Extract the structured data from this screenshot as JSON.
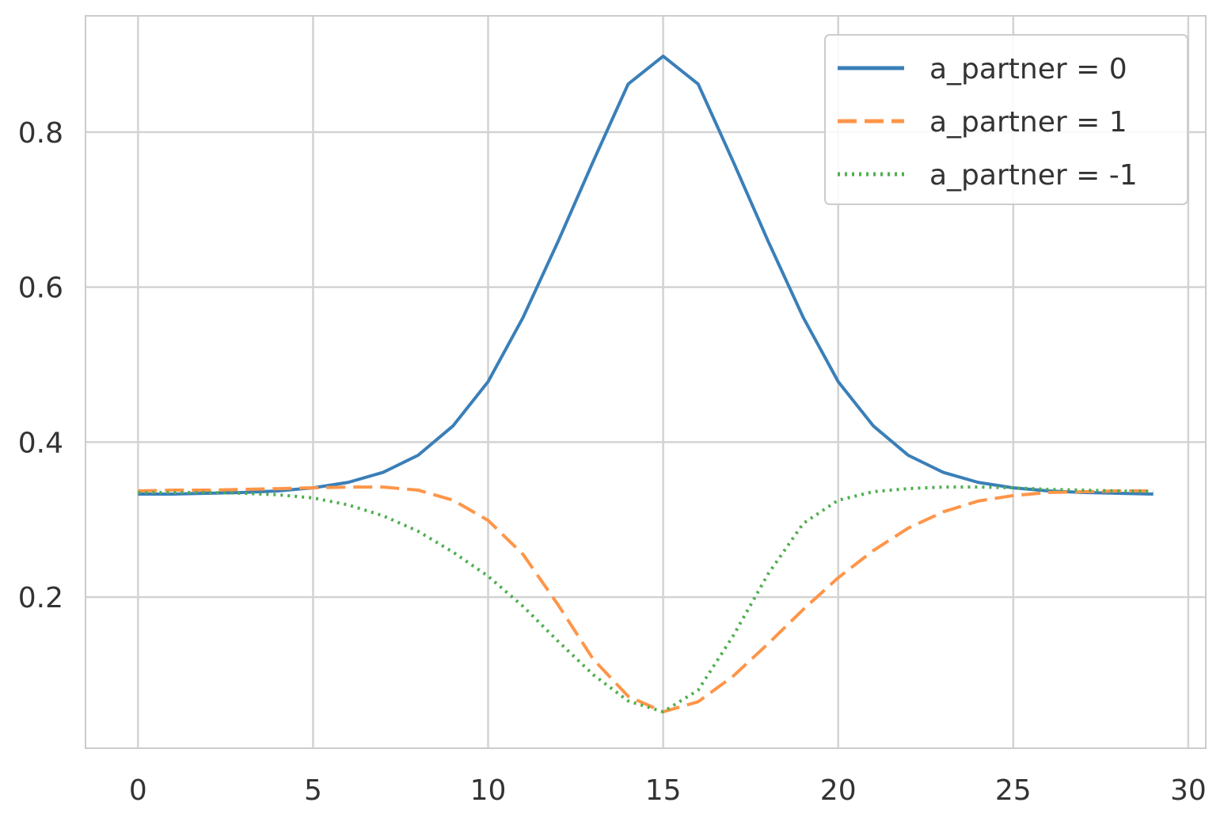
{
  "chart_data": {
    "type": "line",
    "title": "",
    "xlabel": "",
    "ylabel": "",
    "xlim": [
      -1.5,
      30.5
    ],
    "ylim": [
      0.005,
      0.95
    ],
    "grid": true,
    "legend_placement": "top-right",
    "xticks": [
      0,
      5,
      10,
      15,
      20,
      25,
      30
    ],
    "xtick_labels": [
      "0",
      "5",
      "10",
      "15",
      "20",
      "25",
      "30"
    ],
    "yticks": [
      0.2,
      0.4,
      0.6,
      0.8
    ],
    "ytick_labels": [
      "0.2",
      "0.4",
      "0.6",
      "0.8"
    ],
    "x": [
      0,
      1,
      2,
      3,
      4,
      5,
      6,
      7,
      8,
      9,
      10,
      11,
      12,
      13,
      14,
      15,
      16,
      17,
      18,
      19,
      20,
      21,
      22,
      23,
      24,
      25,
      26,
      27,
      28,
      29
    ],
    "series": [
      {
        "name": "a_partner = 0",
        "color": "#3a7fb8",
        "style": "solid",
        "values": [
          0.333,
          0.333,
          0.334,
          0.335,
          0.337,
          0.341,
          0.348,
          0.361,
          0.383,
          0.421,
          0.478,
          0.561,
          0.659,
          0.762,
          0.862,
          0.898,
          0.862,
          0.762,
          0.659,
          0.561,
          0.478,
          0.421,
          0.383,
          0.361,
          0.348,
          0.341,
          0.337,
          0.335,
          0.334,
          0.333
        ]
      },
      {
        "name": "a_partner = 1",
        "color": "#ff9548",
        "style": "dashed",
        "values": [
          0.337,
          0.338,
          0.338,
          0.339,
          0.34,
          0.341,
          0.342,
          0.342,
          0.338,
          0.325,
          0.299,
          0.255,
          0.19,
          0.12,
          0.072,
          0.052,
          0.065,
          0.098,
          0.14,
          0.184,
          0.225,
          0.26,
          0.289,
          0.31,
          0.324,
          0.331,
          0.335,
          0.336,
          0.337,
          0.337
        ]
      },
      {
        "name": "a_partner = -1",
        "color": "#4fae4f",
        "style": "dotted",
        "values": [
          0.335,
          0.335,
          0.335,
          0.334,
          0.332,
          0.328,
          0.319,
          0.305,
          0.285,
          0.258,
          0.227,
          0.188,
          0.143,
          0.1,
          0.066,
          0.052,
          0.08,
          0.15,
          0.23,
          0.295,
          0.325,
          0.336,
          0.34,
          0.342,
          0.342,
          0.341,
          0.339,
          0.338,
          0.337,
          0.336
        ]
      }
    ]
  }
}
